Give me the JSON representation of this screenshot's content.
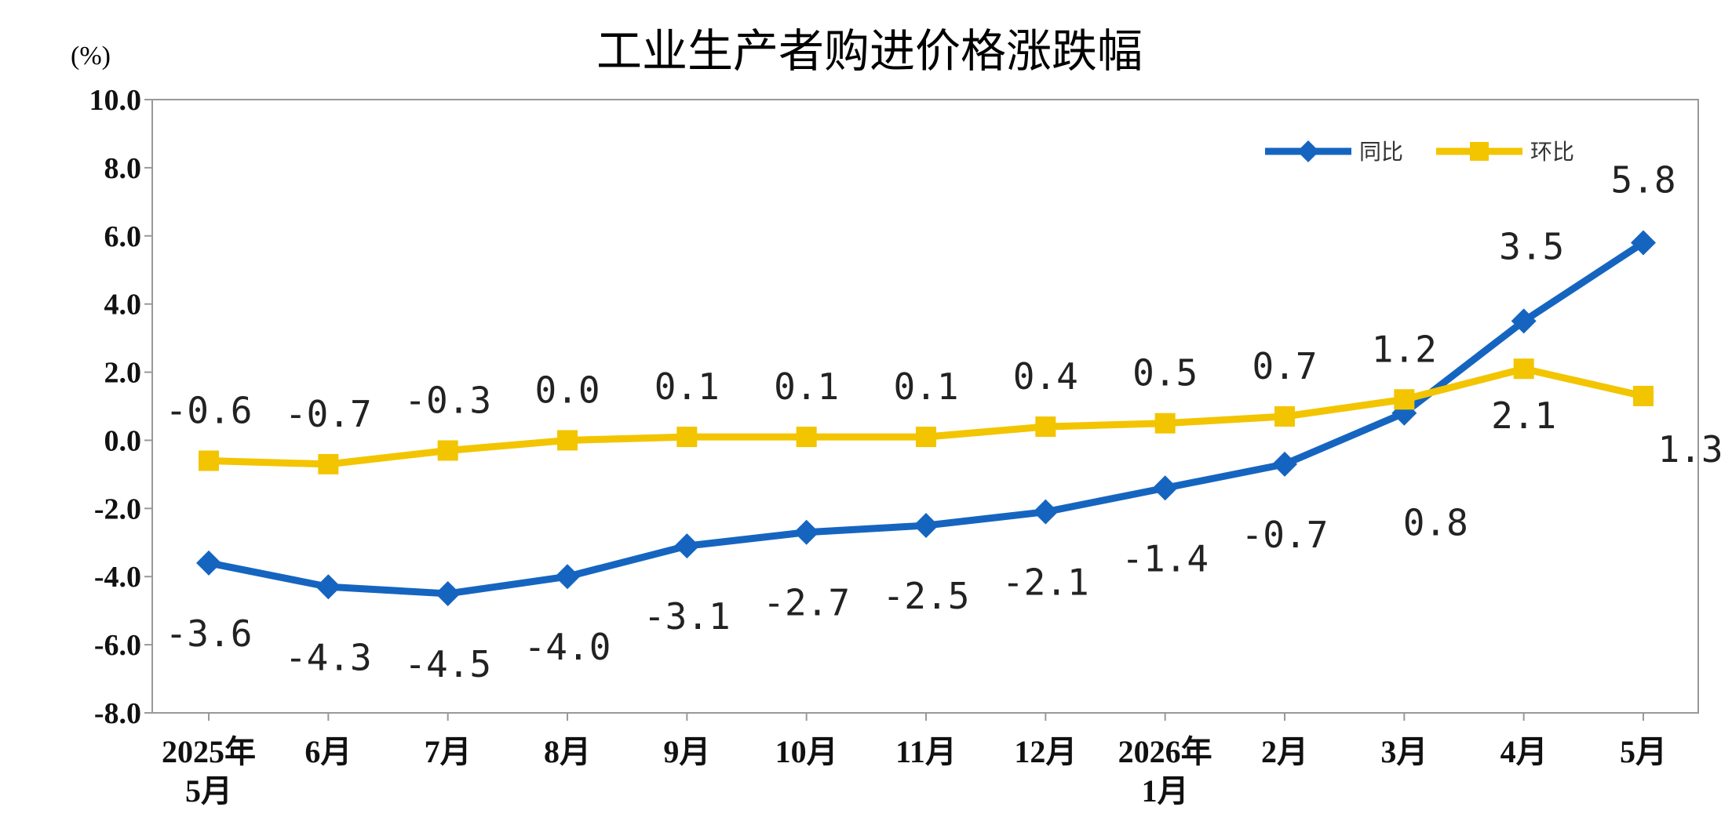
{
  "chart_data": {
    "type": "line",
    "title": "工业生产者购进价格涨跌幅",
    "unit_label": "(%)",
    "ylim": [
      -8.0,
      10.0
    ],
    "y_ticks": [
      "10.0",
      "8.0",
      "6.0",
      "4.0",
      "2.0",
      "0.0",
      "-2.0",
      "-4.0",
      "-6.0",
      "-8.0"
    ],
    "categories": [
      [
        "2025年",
        "5月"
      ],
      [
        "6月"
      ],
      [
        "7月"
      ],
      [
        "8月"
      ],
      [
        "9月"
      ],
      [
        "10月"
      ],
      [
        "11月"
      ],
      [
        "12月"
      ],
      [
        "2026年",
        "1月"
      ],
      [
        "2月"
      ],
      [
        "3月"
      ],
      [
        "4月"
      ],
      [
        "5月"
      ]
    ],
    "legend_position": "top-right",
    "grid": false,
    "series": [
      {
        "name": "同比",
        "color": "#1565C0",
        "marker": "diamond",
        "values": [
          -3.6,
          -4.3,
          -4.5,
          -4.0,
          -3.1,
          -2.7,
          -2.5,
          -2.1,
          -1.4,
          -0.7,
          0.8,
          3.5,
          5.8
        ],
        "labels": [
          "-3.6",
          "-4.3",
          "-4.5",
          "-4.0",
          "-3.1",
          "-2.7",
          "-2.5",
          "-2.1",
          "-1.4",
          "-0.7",
          "0.8",
          "3.5",
          "5.8"
        ]
      },
      {
        "name": "环比",
        "color": "#F2C500",
        "marker": "square",
        "values": [
          -0.6,
          -0.7,
          -0.3,
          0.0,
          0.1,
          0.1,
          0.1,
          0.4,
          0.5,
          0.7,
          1.2,
          2.1,
          1.3
        ],
        "labels": [
          "-0.6",
          "-0.7",
          "-0.3",
          "0.0",
          "0.1",
          "0.1",
          "0.1",
          "0.4",
          "0.5",
          "0.7",
          "1.2",
          "2.1",
          "1.3"
        ]
      }
    ]
  }
}
